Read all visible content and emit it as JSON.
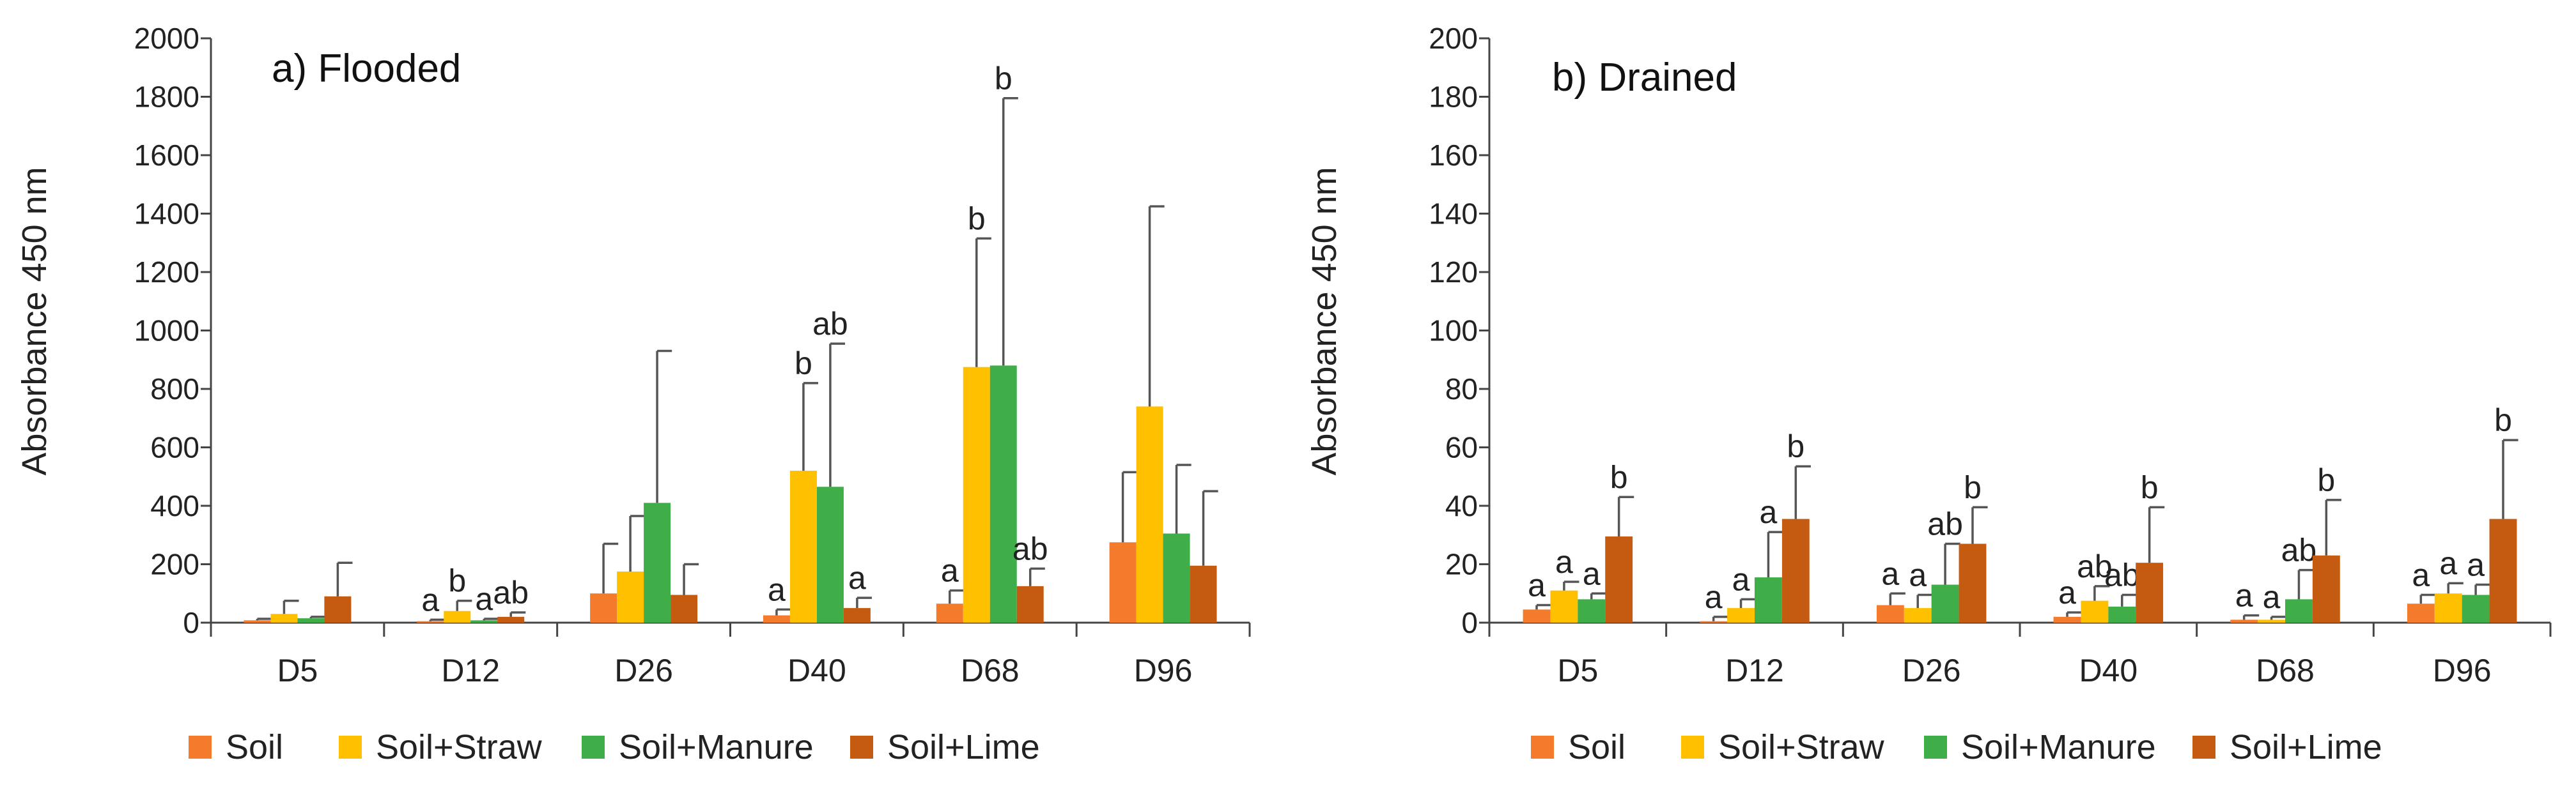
{
  "chart_data": [
    {
      "type": "bar",
      "title": "a) Flooded",
      "xlabel": "",
      "ylabel": "Absorbance 450 nm",
      "ylim": [
        0,
        2000
      ],
      "yticks": [
        0,
        200,
        400,
        600,
        800,
        1000,
        1200,
        1400,
        1600,
        1800,
        2000
      ],
      "categories": [
        "D5",
        "D12",
        "D26",
        "D40",
        "D68",
        "D96"
      ],
      "series": [
        {
          "name": "Soil",
          "color": "#F47B2B",
          "values": [
            8,
            5,
            100,
            25,
            65,
            275
          ],
          "errors": [
            5,
            5,
            170,
            20,
            45,
            240
          ],
          "labels": [
            "",
            "a",
            "",
            "a",
            "a",
            ""
          ]
        },
        {
          "name": "Soil+Straw",
          "color": "#FFC000",
          "values": [
            30,
            40,
            175,
            520,
            875,
            740
          ],
          "errors": [
            45,
            35,
            190,
            300,
            440,
            685
          ],
          "labels": [
            "",
            "b",
            "",
            "b",
            "b",
            ""
          ]
        },
        {
          "name": "Soil+Manure",
          "color": "#3FAE49",
          "values": [
            15,
            8,
            410,
            465,
            880,
            305
          ],
          "errors": [
            5,
            5,
            520,
            490,
            915,
            235
          ],
          "labels": [
            "",
            "a",
            "",
            "ab",
            "b",
            ""
          ]
        },
        {
          "name": "Soil+Lime",
          "color": "#C55A11",
          "values": [
            90,
            20,
            95,
            50,
            125,
            195
          ],
          "errors": [
            115,
            15,
            105,
            35,
            60,
            255
          ],
          "labels": [
            "",
            "ab",
            "",
            "a",
            "ab",
            ""
          ]
        }
      ]
    },
    {
      "type": "bar",
      "title": "b) Drained",
      "xlabel": "",
      "ylabel": "Absorbance 450 nm",
      "ylim": [
        0,
        200
      ],
      "yticks": [
        0,
        20,
        40,
        60,
        80,
        100,
        120,
        140,
        160,
        180,
        200
      ],
      "categories": [
        "D5",
        "D12",
        "D26",
        "D40",
        "D68",
        "D96"
      ],
      "series": [
        {
          "name": "Soil",
          "color": "#F47B2B",
          "values": [
            4.5,
            0.5,
            6,
            2,
            1,
            6.5
          ],
          "errors": [
            1.5,
            1.5,
            4,
            1.5,
            1.5,
            3
          ],
          "labels": [
            "a",
            "a",
            "a",
            "a",
            "a",
            "a"
          ]
        },
        {
          "name": "Soil+Straw",
          "color": "#FFC000",
          "values": [
            11,
            5,
            5,
            7.5,
            1,
            10
          ],
          "errors": [
            3,
            3,
            4.5,
            5,
            1,
            3.5
          ],
          "labels": [
            "a",
            "a",
            "a",
            "ab",
            "a",
            "a"
          ]
        },
        {
          "name": "Soil+Manure",
          "color": "#3FAE49",
          "values": [
            8,
            15.5,
            13,
            5.5,
            8,
            9.5
          ],
          "errors": [
            2,
            15.5,
            14,
            4,
            10,
            3.5
          ],
          "labels": [
            "a",
            "a",
            "ab",
            "ab",
            "ab",
            "a"
          ]
        },
        {
          "name": "Soil+Lime",
          "color": "#C55A11",
          "values": [
            29.5,
            35.5,
            27,
            20.5,
            23,
            35.5
          ],
          "errors": [
            13.5,
            18,
            12.5,
            19,
            19,
            27
          ],
          "labels": [
            "b",
            "b",
            "b",
            "b",
            "b",
            "b"
          ]
        }
      ]
    }
  ]
}
